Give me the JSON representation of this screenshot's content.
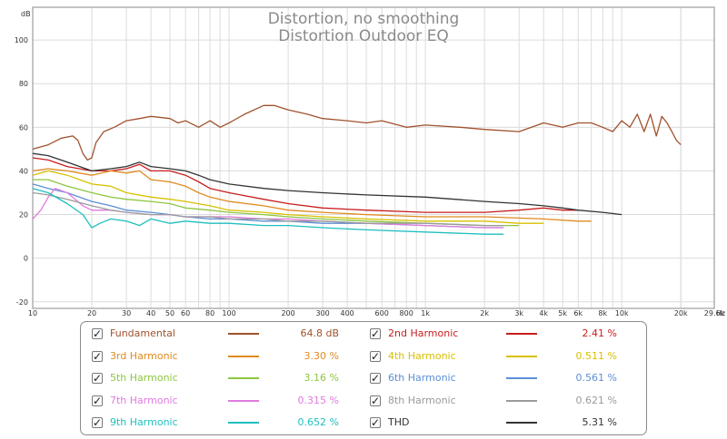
{
  "chart_data": {
    "type": "line",
    "title": "Distortion, no smoothing",
    "subtitle": "Distortion Outdoor EQ",
    "ylabel": "dB",
    "xlabel": "Hz",
    "x_scale": "log",
    "xlim": [
      10,
      29600
    ],
    "ylim": [
      -23,
      115
    ],
    "grid": true,
    "x_ticks": [
      {
        "v": 10,
        "l": "10"
      },
      {
        "v": 20,
        "l": "20"
      },
      {
        "v": 30,
        "l": "30"
      },
      {
        "v": 40,
        "l": "40"
      },
      {
        "v": 50,
        "l": "50"
      },
      {
        "v": 60,
        "l": "60"
      },
      {
        "v": 80,
        "l": "80"
      },
      {
        "v": 100,
        "l": "100"
      },
      {
        "v": 200,
        "l": "200"
      },
      {
        "v": 300,
        "l": "300"
      },
      {
        "v": 400,
        "l": "400"
      },
      {
        "v": 600,
        "l": "600"
      },
      {
        "v": 800,
        "l": "800"
      },
      {
        "v": 1000,
        "l": "1k"
      },
      {
        "v": 2000,
        "l": "2k"
      },
      {
        "v": 3000,
        "l": "3k"
      },
      {
        "v": 4000,
        "l": "4k"
      },
      {
        "v": 5000,
        "l": "5k"
      },
      {
        "v": 6000,
        "l": "6k"
      },
      {
        "v": 8000,
        "l": "8k"
      },
      {
        "v": 10000,
        "l": "10k"
      },
      {
        "v": 20000,
        "l": "20k"
      },
      {
        "v": 29600,
        "l": "29.6k"
      }
    ],
    "y_ticks": [
      -20,
      0,
      20,
      40,
      60,
      80,
      100
    ],
    "series": [
      {
        "name": "Fundamental",
        "color": "#a0522d",
        "value": "64.8 dB",
        "points": [
          [
            10,
            50
          ],
          [
            12,
            52
          ],
          [
            14,
            55
          ],
          [
            16,
            56
          ],
          [
            17,
            54
          ],
          [
            18,
            48
          ],
          [
            19,
            45
          ],
          [
            20,
            46
          ],
          [
            21,
            53
          ],
          [
            23,
            58
          ],
          [
            26,
            60
          ],
          [
            30,
            63
          ],
          [
            35,
            64
          ],
          [
            40,
            65
          ],
          [
            50,
            64
          ],
          [
            55,
            62
          ],
          [
            60,
            63
          ],
          [
            70,
            60
          ],
          [
            80,
            63
          ],
          [
            90,
            60
          ],
          [
            100,
            62
          ],
          [
            120,
            66
          ],
          [
            150,
            70
          ],
          [
            170,
            70
          ],
          [
            200,
            68
          ],
          [
            250,
            66
          ],
          [
            300,
            64
          ],
          [
            400,
            63
          ],
          [
            500,
            62
          ],
          [
            600,
            63
          ],
          [
            800,
            60
          ],
          [
            1000,
            61
          ],
          [
            1500,
            60
          ],
          [
            2000,
            59
          ],
          [
            3000,
            58
          ],
          [
            4000,
            62
          ],
          [
            5000,
            60
          ],
          [
            6000,
            62
          ],
          [
            7000,
            62
          ],
          [
            8000,
            60
          ],
          [
            9000,
            58
          ],
          [
            10000,
            63
          ],
          [
            11000,
            60
          ],
          [
            12000,
            66
          ],
          [
            13000,
            58
          ],
          [
            14000,
            66
          ],
          [
            15000,
            56
          ],
          [
            16000,
            65
          ],
          [
            17000,
            62
          ],
          [
            18000,
            58
          ],
          [
            19000,
            54
          ],
          [
            20000,
            52
          ]
        ]
      },
      {
        "name": "2nd Harmonic",
        "color": "#c81e1e",
        "value": "2.41 %",
        "points": [
          [
            10,
            46
          ],
          [
            12,
            45
          ],
          [
            15,
            42
          ],
          [
            20,
            40
          ],
          [
            25,
            40
          ],
          [
            30,
            41
          ],
          [
            35,
            43
          ],
          [
            40,
            40
          ],
          [
            50,
            40
          ],
          [
            60,
            38
          ],
          [
            70,
            35
          ],
          [
            80,
            32
          ],
          [
            100,
            30
          ],
          [
            150,
            27
          ],
          [
            200,
            25
          ],
          [
            300,
            23
          ],
          [
            500,
            22
          ],
          [
            1000,
            21
          ],
          [
            2000,
            21
          ],
          [
            3000,
            22
          ],
          [
            4000,
            23
          ],
          [
            5000,
            22
          ],
          [
            6000,
            22
          ]
        ]
      },
      {
        "name": "3rd Harmonic",
        "color": "#e08a1e",
        "value": "3.30 %",
        "points": [
          [
            10,
            40
          ],
          [
            12,
            41
          ],
          [
            15,
            40
          ],
          [
            20,
            38
          ],
          [
            25,
            40
          ],
          [
            30,
            39
          ],
          [
            35,
            40
          ],
          [
            40,
            36
          ],
          [
            50,
            35
          ],
          [
            60,
            33
          ],
          [
            70,
            30
          ],
          [
            80,
            28
          ],
          [
            100,
            26
          ],
          [
            150,
            24
          ],
          [
            200,
            22
          ],
          [
            300,
            21
          ],
          [
            500,
            20
          ],
          [
            1000,
            19
          ],
          [
            2000,
            19
          ],
          [
            4000,
            18
          ],
          [
            6000,
            17
          ],
          [
            7000,
            17
          ]
        ]
      },
      {
        "name": "4th Harmonic",
        "color": "#d8c000",
        "value": "0.511 %",
        "points": [
          [
            10,
            38
          ],
          [
            12,
            40
          ],
          [
            15,
            38
          ],
          [
            20,
            34
          ],
          [
            25,
            33
          ],
          [
            30,
            30
          ],
          [
            40,
            28
          ],
          [
            50,
            27
          ],
          [
            60,
            26
          ],
          [
            80,
            24
          ],
          [
            100,
            22
          ],
          [
            150,
            21
          ],
          [
            200,
            20
          ],
          [
            300,
            19
          ],
          [
            500,
            18
          ],
          [
            1000,
            17
          ],
          [
            2000,
            17
          ],
          [
            3000,
            16
          ],
          [
            4000,
            16
          ]
        ]
      },
      {
        "name": "5th Harmonic",
        "color": "#8dc63f",
        "value": "3.16 %",
        "points": [
          [
            10,
            36
          ],
          [
            12,
            36
          ],
          [
            15,
            33
          ],
          [
            20,
            30
          ],
          [
            25,
            28
          ],
          [
            30,
            27
          ],
          [
            40,
            26
          ],
          [
            50,
            25
          ],
          [
            60,
            23
          ],
          [
            80,
            22
          ],
          [
            100,
            21
          ],
          [
            150,
            20
          ],
          [
            200,
            19
          ],
          [
            300,
            18
          ],
          [
            500,
            17
          ],
          [
            1000,
            16
          ],
          [
            2000,
            15
          ],
          [
            3000,
            15
          ]
        ]
      },
      {
        "name": "6th Harmonic",
        "color": "#5b8ed6",
        "value": "0.561 %",
        "points": [
          [
            10,
            34
          ],
          [
            12,
            32
          ],
          [
            15,
            30
          ],
          [
            20,
            26
          ],
          [
            25,
            24
          ],
          [
            30,
            22
          ],
          [
            40,
            21
          ],
          [
            50,
            20
          ],
          [
            60,
            19
          ],
          [
            80,
            18
          ],
          [
            100,
            18
          ],
          [
            150,
            17
          ],
          [
            200,
            17
          ],
          [
            300,
            16
          ],
          [
            500,
            16
          ],
          [
            1000,
            15
          ],
          [
            2000,
            14
          ],
          [
            2500,
            14
          ]
        ]
      },
      {
        "name": "7th Harmonic",
        "color": "#e07ae0",
        "value": "0.315 %",
        "points": [
          [
            10,
            18
          ],
          [
            11,
            22
          ],
          [
            12,
            28
          ],
          [
            13,
            32
          ],
          [
            15,
            30
          ],
          [
            18,
            24
          ],
          [
            20,
            22
          ],
          [
            25,
            22
          ],
          [
            30,
            21
          ],
          [
            40,
            20
          ],
          [
            50,
            20
          ],
          [
            60,
            19
          ],
          [
            80,
            19
          ],
          [
            100,
            19
          ],
          [
            150,
            18
          ],
          [
            200,
            18
          ],
          [
            300,
            17
          ],
          [
            500,
            16
          ],
          [
            1000,
            15
          ],
          [
            2000,
            14
          ],
          [
            2500,
            14
          ]
        ]
      },
      {
        "name": "8th Harmonic",
        "color": "#9a9a9a",
        "value": "0.621 %",
        "points": [
          [
            10,
            30
          ],
          [
            12,
            29
          ],
          [
            15,
            27
          ],
          [
            20,
            24
          ],
          [
            25,
            22
          ],
          [
            30,
            21
          ],
          [
            40,
            20
          ],
          [
            50,
            20
          ],
          [
            60,
            19
          ],
          [
            80,
            19
          ],
          [
            100,
            18
          ],
          [
            150,
            18
          ],
          [
            200,
            17
          ],
          [
            300,
            17
          ],
          [
            500,
            16
          ],
          [
            1000,
            16
          ],
          [
            2000,
            15
          ],
          [
            2500,
            15
          ]
        ]
      },
      {
        "name": "9th Harmonic",
        "color": "#1ebfbf",
        "value": "0.652 %",
        "points": [
          [
            10,
            32
          ],
          [
            12,
            30
          ],
          [
            15,
            25
          ],
          [
            18,
            20
          ],
          [
            20,
            14
          ],
          [
            22,
            16
          ],
          [
            25,
            18
          ],
          [
            30,
            17
          ],
          [
            35,
            15
          ],
          [
            40,
            18
          ],
          [
            50,
            16
          ],
          [
            60,
            17
          ],
          [
            80,
            16
          ],
          [
            100,
            16
          ],
          [
            150,
            15
          ],
          [
            200,
            15
          ],
          [
            300,
            14
          ],
          [
            500,
            13
          ],
          [
            1000,
            12
          ],
          [
            2000,
            11
          ],
          [
            2500,
            11
          ]
        ]
      },
      {
        "name": "THD",
        "color": "#333333",
        "value": "5.31 %",
        "points": [
          [
            10,
            48
          ],
          [
            12,
            47
          ],
          [
            15,
            44
          ],
          [
            20,
            40
          ],
          [
            25,
            41
          ],
          [
            30,
            42
          ],
          [
            35,
            44
          ],
          [
            40,
            42
          ],
          [
            50,
            41
          ],
          [
            60,
            40
          ],
          [
            70,
            38
          ],
          [
            80,
            36
          ],
          [
            100,
            34
          ],
          [
            150,
            32
          ],
          [
            200,
            31
          ],
          [
            300,
            30
          ],
          [
            500,
            29
          ],
          [
            1000,
            28
          ],
          [
            2000,
            26
          ],
          [
            3000,
            25
          ],
          [
            4000,
            24
          ],
          [
            5000,
            23
          ],
          [
            6000,
            22
          ],
          [
            8000,
            21
          ],
          [
            10000,
            20
          ]
        ]
      }
    ]
  }
}
